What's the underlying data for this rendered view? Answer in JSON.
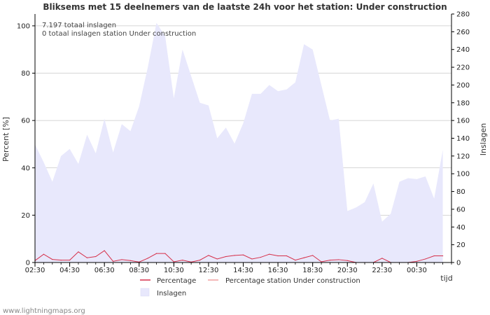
{
  "chart_data": {
    "type": "area",
    "title": "Bliksems met 15 deelnemers van de laatste 24h voor het station: Under construction",
    "notes": [
      "7.197 totaal inslagen",
      "0 totaal inslagen station Under construction"
    ],
    "xlabel": "tijd",
    "ylabel_left": "Percent   [%]",
    "ylabel_right": "Inslagen",
    "x_tick_labels": [
      "02:30",
      "04:30",
      "06:30",
      "08:30",
      "10:30",
      "12:30",
      "14:30",
      "16:30",
      "18:30",
      "20:30",
      "22:30",
      "00:30"
    ],
    "left_axis": {
      "range": [
        0,
        105
      ],
      "ticks": [
        0,
        20,
        40,
        60,
        80,
        100
      ]
    },
    "right_axis": {
      "range": [
        0,
        280
      ],
      "ticks": [
        0,
        20,
        40,
        60,
        80,
        100,
        120,
        140,
        160,
        180,
        200,
        220,
        240,
        260,
        280
      ]
    },
    "slot_count": 48,
    "series": [
      {
        "name": "Inslagen",
        "axis": "right",
        "color": "#e8e8fc",
        "values": [
          133,
          113,
          91,
          120,
          128,
          111,
          144,
          123,
          162,
          124,
          156,
          148,
          176,
          220,
          270,
          255,
          185,
          240,
          210,
          180,
          177,
          140,
          152,
          134,
          157,
          190,
          190,
          200,
          193,
          195,
          203,
          246,
          240,
          200,
          160,
          162,
          58,
          62,
          68,
          89,
          46,
          55,
          91,
          95,
          94,
          97,
          72,
          127
        ]
      },
      {
        "name": "Percentage",
        "axis": "left",
        "color": "#d6304a",
        "values": [
          0.8,
          3.5,
          1.3,
          1.0,
          1.0,
          4.5,
          2.0,
          2.5,
          5.0,
          0.5,
          1.2,
          0.8,
          0.2,
          1.8,
          3.8,
          3.8,
          0.3,
          1.0,
          0.2,
          1.0,
          3.0,
          1.5,
          2.5,
          3.0,
          3.2,
          1.5,
          2.2,
          3.5,
          2.8,
          2.8,
          1.0,
          2.0,
          3.0,
          0.3,
          1.0,
          1.2,
          0.8,
          0,
          0,
          0,
          1.8,
          0,
          0,
          0,
          0.5,
          1.5,
          2.8,
          2.8
        ]
      },
      {
        "name": "Percentage station Under construction",
        "axis": "left",
        "color": "#f0a0a0",
        "values": []
      }
    ],
    "legend": [
      {
        "label": "Percentage",
        "kind": "line",
        "color": "#d6304a"
      },
      {
        "label": "Percentage station Under construction",
        "kind": "line",
        "color": "#f0a0a0"
      },
      {
        "label": "Inslagen",
        "kind": "box",
        "color": "#e8e8fc"
      }
    ]
  },
  "footer": "www.lightningmaps.org"
}
